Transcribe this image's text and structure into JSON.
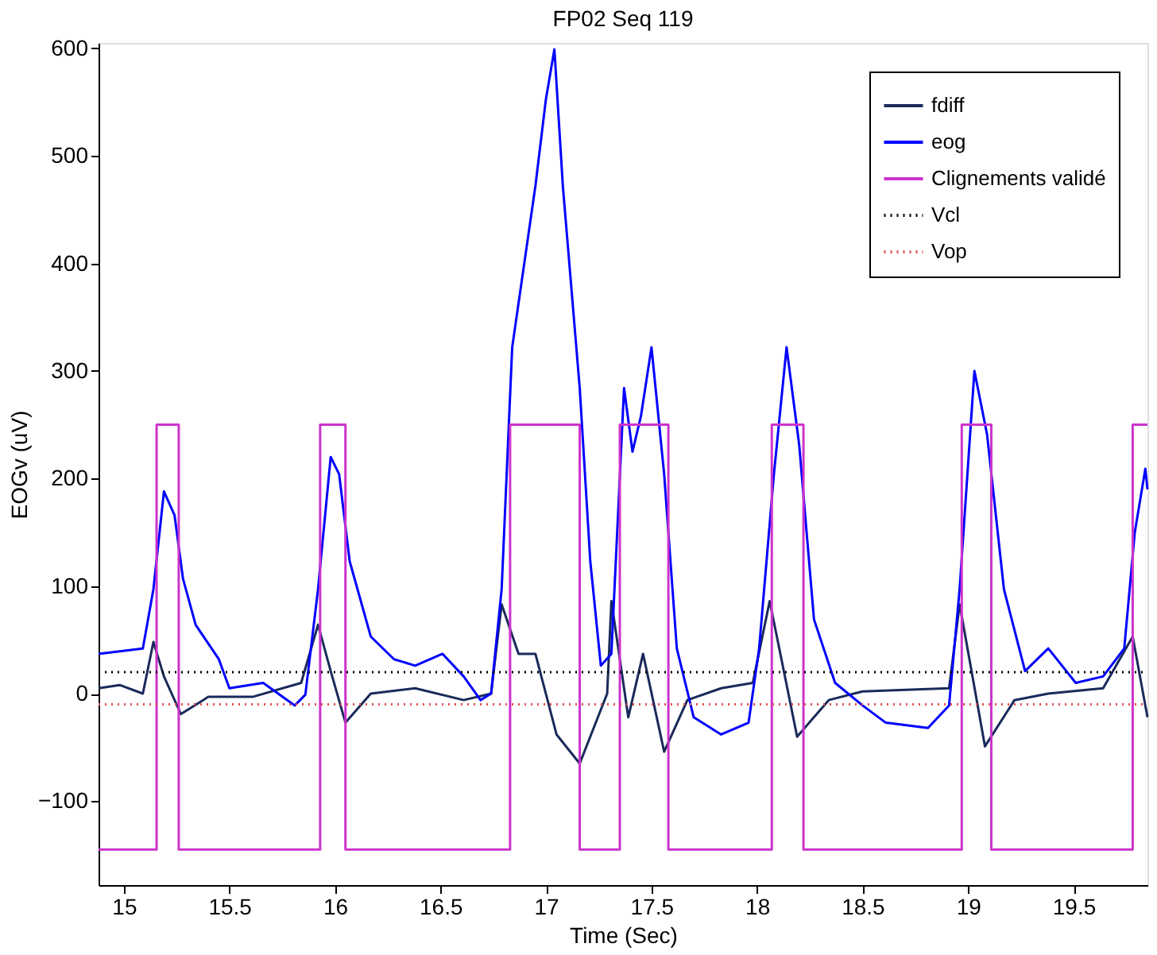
{
  "chart_data": {
    "type": "line",
    "title": "FP02 Seq 119",
    "xlabel": "Time (Sec)",
    "ylabel": "EOGv (uV)",
    "xlim": [
      14.88,
      19.85
    ],
    "xticks": [
      15,
      15.5,
      16,
      16.5,
      17,
      17.5,
      18,
      18.5,
      19,
      19.5
    ],
    "ylim": [
      -178,
      605
    ],
    "yticks": [
      -100,
      0,
      100,
      200,
      300,
      400,
      500,
      600
    ],
    "grid": false,
    "legend": "top right",
    "marker": "none",
    "series": [
      {
        "name": "fdiff",
        "color": "#1a2a5a",
        "line_style": "solid",
        "x": [
          14.88,
          14.98,
          15.09,
          15.14,
          15.19,
          15.27,
          15.4,
          15.61,
          15.84,
          15.92,
          15.98,
          16.05,
          16.17,
          16.38,
          16.61,
          16.74,
          16.79,
          16.87,
          16.95,
          17.05,
          17.16,
          17.29,
          17.31,
          17.39,
          17.46,
          17.56,
          17.67,
          17.83,
          17.98,
          18.06,
          18.19,
          18.34,
          18.5,
          18.91,
          18.96,
          19.08,
          19.22,
          19.38,
          19.64,
          19.78,
          19.85
        ],
        "values": [
          5,
          8,
          0,
          48,
          16,
          -19,
          -3,
          -3,
          10,
          64,
          21,
          -27,
          0,
          5,
          -6,
          0,
          83,
          37,
          37,
          -38,
          -65,
          0,
          86,
          -22,
          37,
          -54,
          -6,
          5,
          10,
          86,
          -40,
          -6,
          2,
          5,
          83,
          -49,
          -6,
          0,
          5,
          53,
          -22
        ]
      },
      {
        "name": "eog",
        "color": "#0000ff",
        "line_style": "solid",
        "x": [
          14.88,
          15.09,
          15.14,
          15.19,
          15.24,
          15.28,
          15.34,
          15.45,
          15.5,
          15.66,
          15.81,
          15.86,
          15.92,
          15.98,
          16.02,
          16.07,
          16.17,
          16.28,
          16.38,
          16.51,
          16.61,
          16.69,
          16.74,
          16.79,
          16.84,
          16.95,
          17.0,
          17.04,
          17.08,
          17.16,
          17.21,
          17.26,
          17.31,
          17.37,
          17.41,
          17.45,
          17.5,
          17.56,
          17.62,
          17.7,
          17.83,
          17.96,
          18.01,
          18.08,
          18.14,
          18.2,
          18.27,
          18.37,
          18.5,
          18.61,
          18.81,
          18.91,
          18.96,
          19.03,
          19.09,
          19.17,
          19.27,
          19.38,
          19.51,
          19.64,
          19.74,
          19.79,
          19.84,
          19.85
        ],
        "values": [
          37,
          42,
          97,
          188,
          166,
          107,
          64,
          32,
          5,
          10,
          -11,
          -1,
          97,
          220,
          204,
          123,
          53,
          32,
          26,
          37,
          16,
          -6,
          0,
          97,
          322,
          472,
          553,
          599,
          472,
          284,
          123,
          26,
          37,
          284,
          225,
          258,
          322,
          204,
          42,
          -22,
          -38,
          -27,
          42,
          204,
          322,
          231,
          69,
          10,
          -11,
          -27,
          -32,
          -11,
          97,
          300,
          241,
          97,
          21,
          42,
          10,
          16,
          42,
          150,
          209,
          190
        ]
      },
      {
        "name": "Clignements validé",
        "color": "#cc33cc",
        "line_style": "solid",
        "x": [
          14.88,
          15.155,
          15.155,
          15.26,
          15.26,
          15.93,
          15.93,
          16.05,
          16.05,
          16.83,
          16.83,
          17.16,
          17.16,
          17.35,
          17.35,
          17.58,
          17.58,
          18.07,
          18.07,
          18.22,
          18.22,
          18.97,
          18.97,
          19.11,
          19.11,
          19.78,
          19.78,
          19.85
        ],
        "values": [
          -145,
          -145,
          250,
          250,
          -145,
          -145,
          250,
          250,
          -145,
          -145,
          250,
          250,
          -145,
          -145,
          250,
          250,
          -145,
          -145,
          250,
          250,
          -145,
          -145,
          250,
          250,
          -145,
          -145,
          250,
          250
        ]
      },
      {
        "name": "Vcl",
        "color": "#000000",
        "line_style": "dotted",
        "x": [
          14.88,
          19.85
        ],
        "values": [
          20,
          20
        ]
      },
      {
        "name": "Vop",
        "color": "#e05050",
        "line_style": "dotted",
        "x": [
          14.88,
          19.85
        ],
        "values": [
          -10,
          -10
        ]
      }
    ]
  }
}
